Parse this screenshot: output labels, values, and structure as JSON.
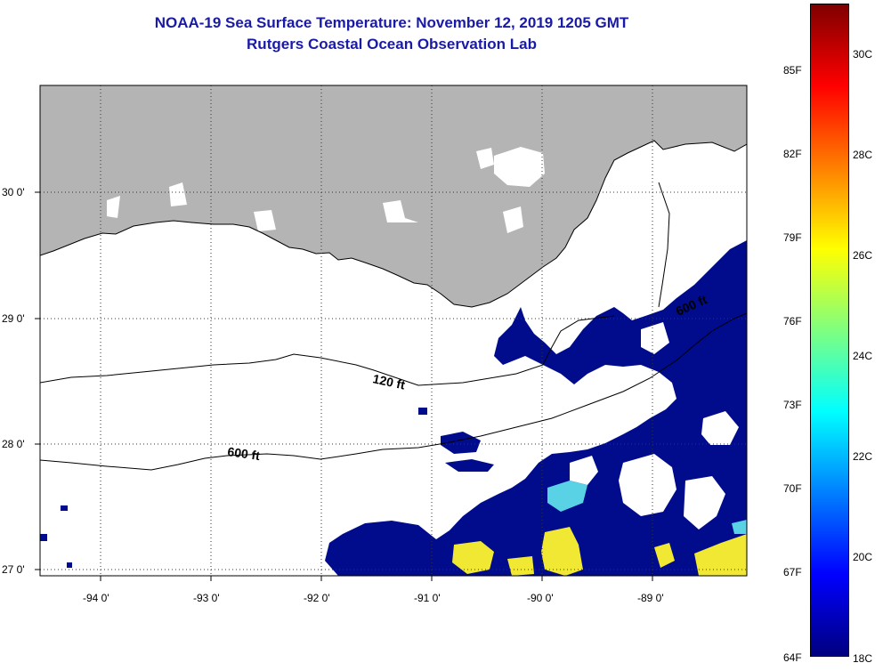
{
  "title_line1": "NOAA-19 Sea Surface Temperature:  November 12, 2019 1205 GMT",
  "title_line2": "Rutgers Coastal Ocean Observation Lab",
  "map": {
    "lon_ticks": [
      "-94 0'",
      "-93 0'",
      "-92 0'",
      "-91 0'",
      "-90 0'",
      "-89 0'"
    ],
    "lat_ticks": [
      "30 0'",
      "29 0'",
      "28 0'",
      "27 0'"
    ],
    "contours": [
      {
        "label": "120 ft"
      },
      {
        "label": "600 ft"
      },
      {
        "label": "600 ft"
      }
    ],
    "colors": {
      "land": "#b4b4b4",
      "cloud": "#ffffff",
      "cold_sst": "#000c8c",
      "coastline": "#000000"
    }
  },
  "colorbar": {
    "fahrenheit_labels": [
      "85F",
      "82F",
      "79F",
      "76F",
      "73F",
      "70F",
      "67F",
      "64F"
    ],
    "celsius_labels": [
      "30C",
      "28C",
      "26C",
      "24C",
      "22C",
      "20C",
      "18C"
    ],
    "range_c": [
      18,
      31
    ],
    "colors": [
      "#00007f",
      "#0000ff",
      "#007fff",
      "#00ffff",
      "#7fff7f",
      "#ffff00",
      "#ff7f00",
      "#ff0000",
      "#7f0000"
    ]
  }
}
